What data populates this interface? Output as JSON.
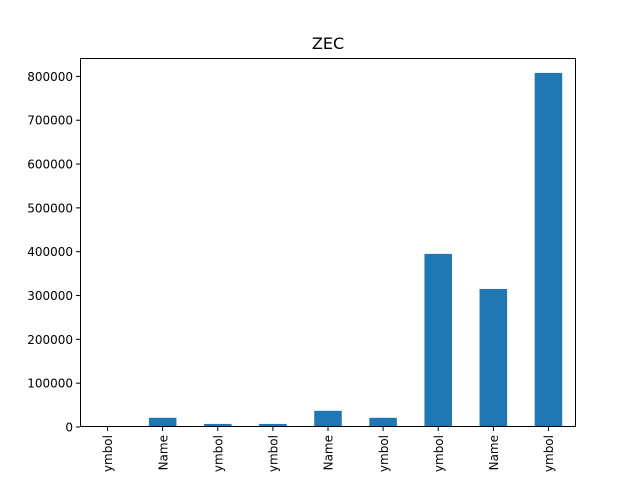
{
  "chart_data": {
    "type": "bar",
    "title": "ZEC",
    "xlabel": "",
    "ylabel": "",
    "categories": [
      "ymbol",
      "Name",
      "ymbol",
      "ymbol",
      "Name",
      "ymbol",
      "ymbol",
      "Name",
      "ymbol"
    ],
    "values": [
      2000,
      21000,
      7000,
      7000,
      37000,
      21000,
      395000,
      315000,
      808000
    ],
    "ylim": [
      0,
      842000
    ],
    "yticks": [
      0,
      100000,
      200000,
      300000,
      400000,
      500000,
      600000,
      700000,
      800000
    ],
    "ytick_labels": [
      "0",
      "100000",
      "200000",
      "300000",
      "400000",
      "500000",
      "600000",
      "700000",
      "800000"
    ],
    "grid": false,
    "bar_color": "#1f77b4"
  }
}
